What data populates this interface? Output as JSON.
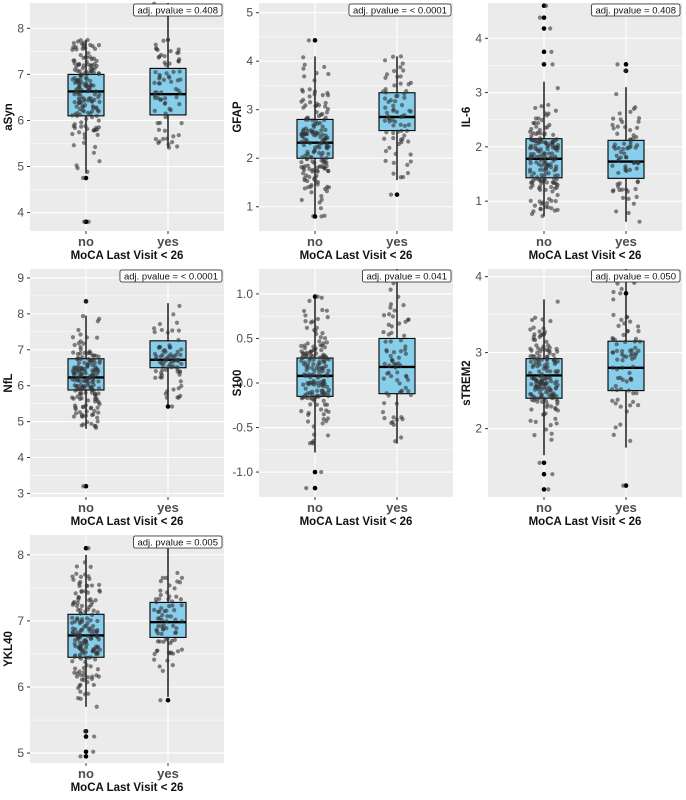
{
  "chart_data": [
    {
      "type": "box",
      "ylabel": "aSyn",
      "xlabel": "MoCA Last Visit < 26",
      "categories": [
        "no",
        "yes"
      ],
      "ylim": [
        3.6,
        8.55
      ],
      "yticks": [
        4,
        5,
        6,
        7,
        8
      ],
      "pvalue_label": "adj. pvalue = 0.408",
      "boxes": [
        {
          "q1": 6.1,
          "median": 6.63,
          "q3": 7.0,
          "whisker_low": 4.85,
          "whisker_high": 7.75
        },
        {
          "q1": 6.12,
          "median": 6.57,
          "q3": 7.13,
          "whisker_low": 5.4,
          "whisker_high": 8.55
        }
      ],
      "outliers": [
        [
          3.8,
          3.8,
          4.75
        ],
        []
      ]
    },
    {
      "type": "box",
      "ylabel": "GFAP",
      "xlabel": "MoCA Last Visit < 26",
      "categories": [
        "no",
        "yes"
      ],
      "ylim": [
        0.5,
        5.2
      ],
      "yticks": [
        1,
        2,
        3,
        4,
        5
      ],
      "pvalue_label": "adj. pvalue = < 0.0001",
      "boxes": [
        {
          "q1": 2.0,
          "median": 2.32,
          "q3": 2.8,
          "whisker_low": 0.8,
          "whisker_high": 4.1
        },
        {
          "q1": 2.57,
          "median": 2.85,
          "q3": 3.35,
          "whisker_low": 1.55,
          "whisker_high": 4.1
        }
      ],
      "outliers": [
        [
          4.43,
          0.8
        ],
        [
          1.25
        ]
      ]
    },
    {
      "type": "box",
      "ylabel": "IL-6",
      "xlabel": "MoCA Last Visit < 26",
      "categories": [
        "no",
        "yes"
      ],
      "ylim": [
        0.45,
        4.65
      ],
      "yticks": [
        1,
        2,
        3,
        4
      ],
      "pvalue_label": "adj. pvalue = 0.408",
      "boxes": [
        {
          "q1": 1.43,
          "median": 1.78,
          "q3": 2.15,
          "whisker_low": 0.72,
          "whisker_high": 3.2
        },
        {
          "q1": 1.42,
          "median": 1.73,
          "q3": 2.12,
          "whisker_low": 0.62,
          "whisker_high": 3.1
        }
      ],
      "outliers": [
        [
          4.6,
          4.38,
          4.18,
          3.75,
          3.52
        ],
        [
          3.52,
          3.4
        ]
      ]
    },
    {
      "type": "box",
      "ylabel": "NfL",
      "xlabel": "MoCA Last Visit < 26",
      "categories": [
        "no",
        "yes"
      ],
      "ylim": [
        2.9,
        9.25
      ],
      "yticks": [
        3,
        4,
        5,
        6,
        7,
        8,
        9
      ],
      "pvalue_label": "adj. pvalue = < 0.0001",
      "boxes": [
        {
          "q1": 5.88,
          "median": 6.23,
          "q3": 6.75,
          "whisker_low": 4.8,
          "whisker_high": 7.95
        },
        {
          "q1": 6.5,
          "median": 6.72,
          "q3": 7.25,
          "whisker_low": 5.45,
          "whisker_high": 8.3
        }
      ],
      "outliers": [
        [
          8.35,
          3.2
        ],
        [
          5.42
        ]
      ]
    },
    {
      "type": "box",
      "ylabel": "S100",
      "xlabel": "MoCA Last Visit < 26",
      "categories": [
        "no",
        "yes"
      ],
      "ylim": [
        -1.28,
        1.28
      ],
      "yticks": [
        -1.0,
        -0.5,
        0.0,
        0.5,
        1.0
      ],
      "pvalue_label": "adj. pvalue = 0.041",
      "boxes": [
        {
          "q1": -0.15,
          "median": 0.08,
          "q3": 0.28,
          "whisker_low": -0.78,
          "whisker_high": 0.97
        },
        {
          "q1": -0.12,
          "median": 0.18,
          "q3": 0.5,
          "whisker_low": -0.68,
          "whisker_high": 1.28
        }
      ],
      "outliers": [
        [
          0.97,
          -1.0,
          -1.18
        ],
        []
      ]
    },
    {
      "type": "box",
      "ylabel": "sTREM2",
      "xlabel": "MoCA Last Visit < 26",
      "categories": [
        "no",
        "yes"
      ],
      "ylim": [
        1.1,
        4.1
      ],
      "yticks": [
        2,
        3,
        4
      ],
      "pvalue_label": "adj. pvalue = 0.050",
      "boxes": [
        {
          "q1": 2.4,
          "median": 2.7,
          "q3": 2.92,
          "whisker_low": 1.65,
          "whisker_high": 3.7
        },
        {
          "q1": 2.5,
          "median": 2.8,
          "q3": 3.15,
          "whisker_low": 1.75,
          "whisker_high": 4.1
        }
      ],
      "outliers": [
        [
          1.55,
          1.4,
          1.2
        ],
        [
          1.25,
          3.78
        ]
      ]
    },
    {
      "type": "box",
      "ylabel": "YKL40",
      "xlabel": "MoCA Last Visit < 26",
      "categories": [
        "no",
        "yes"
      ],
      "ylim": [
        4.85,
        8.3
      ],
      "yticks": [
        5,
        6,
        7,
        8
      ],
      "pvalue_label": "adj. pvalue = 0.005",
      "boxes": [
        {
          "q1": 6.45,
          "median": 6.78,
          "q3": 7.1,
          "whisker_low": 5.7,
          "whisker_high": 8.0
        },
        {
          "q1": 6.75,
          "median": 6.98,
          "q3": 7.28,
          "whisker_low": 5.85,
          "whisker_high": 8.1
        }
      ],
      "outliers": [
        [
          8.1,
          5.33,
          5.25,
          5.02,
          4.95
        ],
        [
          5.8
        ]
      ]
    }
  ],
  "colors": {
    "panel_bg": "#ebebeb",
    "gridline": "#ffffff",
    "box_fill": "#87ceeb",
    "box_stroke": "#000000",
    "point": "#333333"
  }
}
